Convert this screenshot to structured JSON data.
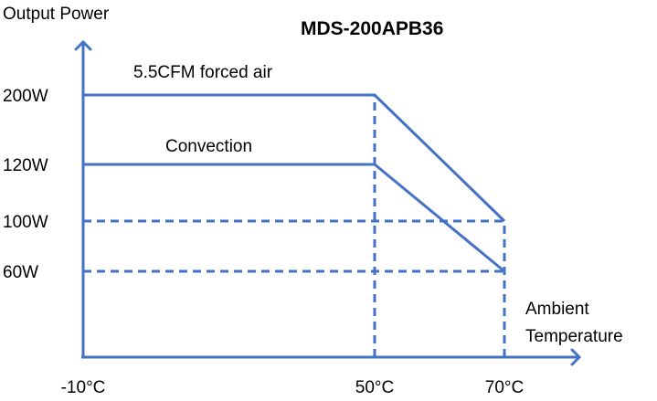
{
  "chart_data": {
    "type": "line",
    "title": "MDS-200APB36",
    "ylabel": "Output Power",
    "xlabel": [
      "Ambient",
      "Temperature"
    ],
    "x_ticks": [
      {
        "value": -10,
        "label": "-10°C"
      },
      {
        "value": 50,
        "label": "50°C"
      },
      {
        "value": 70,
        "label": "70°C"
      }
    ],
    "y_ticks": [
      {
        "value": 200,
        "label": "200W"
      },
      {
        "value": 120,
        "label": "120W"
      },
      {
        "value": 100,
        "label": "100W"
      },
      {
        "value": 60,
        "label": "60W"
      }
    ],
    "series": [
      {
        "name": "5.5CFM forced air",
        "points": [
          [
            -10,
            200
          ],
          [
            50,
            200
          ],
          [
            70,
            100
          ]
        ]
      },
      {
        "name": "Convection",
        "points": [
          [
            -10,
            120
          ],
          [
            50,
            120
          ],
          [
            70,
            60
          ]
        ]
      }
    ],
    "guides": {
      "horizontal": [
        100,
        60
      ],
      "vertical": [
        50,
        70
      ]
    },
    "line_color": "#4472c4"
  }
}
